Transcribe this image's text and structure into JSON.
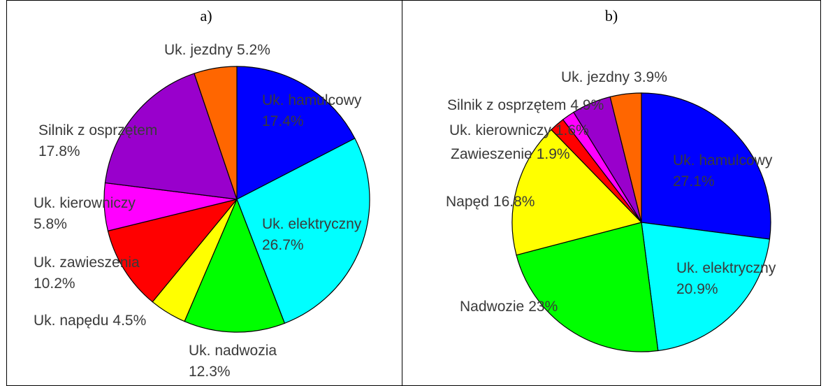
{
  "chart_data": [
    {
      "type": "pie",
      "title": "a)",
      "categories": [
        "Uk. hamulcowy",
        "Uk. elektryczny",
        "Uk. nadwozia",
        "Uk. napędu",
        "Uk. zawieszenia",
        "Uk. kierowniczy",
        "Silnik z osprzętem",
        "Uk. jezdny"
      ],
      "values": [
        17.4,
        26.7,
        12.3,
        4.5,
        10.2,
        5.8,
        17.8,
        5.2
      ],
      "value_labels": [
        "17.4%",
        "26.7%",
        "12.3%",
        "4.5%",
        "10.2%",
        "5.8%",
        "17.8%",
        "5.2%"
      ],
      "colors": [
        "#0000ff",
        "#00ffff",
        "#00ff00",
        "#ffff00",
        "#ff0000",
        "#ff00ff",
        "#9900cc",
        "#ff6600"
      ]
    },
    {
      "type": "pie",
      "title": "b)",
      "categories": [
        "Uk. hamulcowy",
        "Uk. elektryczny",
        "Nadwozie",
        "Napęd",
        "Zawieszenie",
        "Uk. kierowniczy",
        "Silnik z osprzętem",
        "Uk. jezdny"
      ],
      "values": [
        27.1,
        20.9,
        23,
        16.8,
        1.9,
        1.6,
        4.9,
        3.9
      ],
      "value_labels": [
        "27.1%",
        "20.9%",
        "23%",
        "16.8%",
        "1.9%",
        "1.6%",
        "4.9%",
        "3.9%"
      ],
      "colors": [
        "#0000ff",
        "#00ffff",
        "#00ff00",
        "#ffff00",
        "#ff0000",
        "#ff00ff",
        "#9900cc",
        "#ff6600"
      ]
    }
  ]
}
